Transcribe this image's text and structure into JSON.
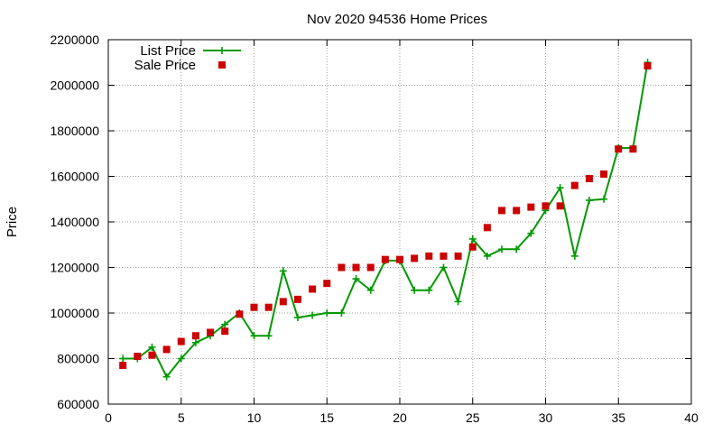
{
  "chart_data": {
    "type": "line",
    "title": "Nov 2020 94536 Home Prices",
    "xlabel": "",
    "ylabel": "Price",
    "xlim": [
      0,
      40
    ],
    "ylim": [
      600000,
      2200000
    ],
    "x_ticks": [
      0,
      5,
      10,
      15,
      20,
      25,
      30,
      35,
      40
    ],
    "y_ticks": [
      600000,
      800000,
      1000000,
      1200000,
      1400000,
      1600000,
      1800000,
      2000000,
      2200000
    ],
    "grid": true,
    "legend_position": "top-left",
    "x": [
      1,
      2,
      3,
      4,
      5,
      6,
      7,
      8,
      9,
      10,
      11,
      12,
      13,
      14,
      15,
      16,
      17,
      18,
      19,
      20,
      21,
      22,
      23,
      24,
      25,
      26,
      27,
      28,
      29,
      30,
      31,
      32,
      33,
      34,
      35,
      36,
      37
    ],
    "series": [
      {
        "name": "List Price",
        "style": "line-with-plus-markers",
        "color": "#009900",
        "values": [
          800000,
          800000,
          850000,
          720000,
          800000,
          870000,
          900000,
          950000,
          1000000,
          900000,
          900000,
          1185000,
          980000,
          990000,
          1000000,
          1000000,
          1150000,
          1100000,
          1230000,
          1230000,
          1100000,
          1100000,
          1200000,
          1050000,
          1325000,
          1250000,
          1280000,
          1280000,
          1350000,
          1450000,
          1550000,
          1250000,
          1495000,
          1500000,
          1725000,
          1725000,
          2100000
        ]
      },
      {
        "name": "Sale Price",
        "style": "square-markers",
        "color": "#cc0000",
        "values": [
          770000,
          810000,
          815000,
          840000,
          875000,
          900000,
          915000,
          920000,
          995000,
          1025000,
          1025000,
          1050000,
          1060000,
          1105000,
          1130000,
          1200000,
          1200000,
          1200000,
          1235000,
          1235000,
          1240000,
          1250000,
          1250000,
          1250000,
          1290000,
          1375000,
          1450000,
          1450000,
          1465000,
          1470000,
          1470000,
          1560000,
          1590000,
          1610000,
          1720000,
          1720000,
          2085000
        ]
      }
    ]
  }
}
